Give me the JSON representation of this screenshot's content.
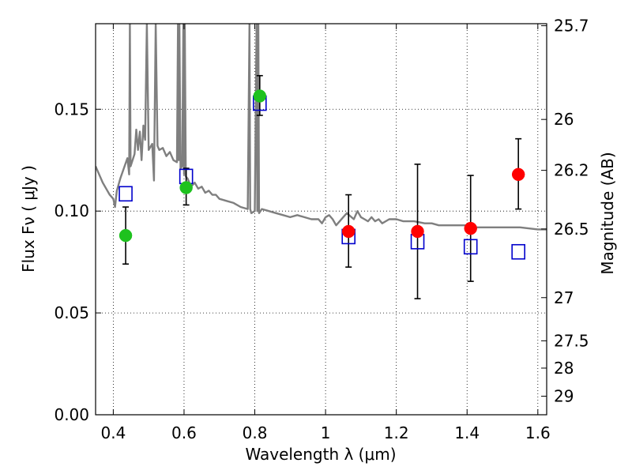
{
  "chart_data": {
    "type": "scatter",
    "xlabel": "Wavelength  λ (μm)",
    "ylabel": "Flux  Fν  ( μJy )",
    "y2label": "Magnitude (AB)",
    "xlim": [
      0.35,
      1.625
    ],
    "ylim": [
      0.0,
      0.192
    ],
    "grid": true,
    "x_ticks": [
      0.4,
      0.6,
      0.8,
      1.0,
      1.2,
      1.4,
      1.6
    ],
    "x_tick_labels": [
      "0.4",
      "0.6",
      "0.8",
      "1",
      "1.2",
      "1.4",
      "1.6"
    ],
    "y_ticks": [
      0.0,
      0.05,
      0.1,
      0.15
    ],
    "y_tick_labels": [
      "0.00",
      "0.05",
      "0.10",
      "0.15"
    ],
    "y2_ticks": [
      {
        "label": "25.7",
        "flux": 0.191
      },
      {
        "label": "26",
        "flux": 0.145
      },
      {
        "label": "26.2",
        "flux": 0.12
      },
      {
        "label": "26.5",
        "flux": 0.0912
      },
      {
        "label": "27",
        "flux": 0.0575
      },
      {
        "label": "27.5",
        "flux": 0.0363
      },
      {
        "label": "28",
        "flux": 0.0229
      },
      {
        "label": "29",
        "flux": 0.0091
      }
    ],
    "colors": {
      "green": "#1ec21e",
      "red": "#ff0000",
      "model_box": "#0000cc",
      "spectrum": "#7f7f7f",
      "errorbar": "#000000"
    },
    "series": [
      {
        "marker": "green-circle",
        "points": [
          {
            "x": 0.435,
            "y": 0.088,
            "yerr_low": 0.074,
            "yerr_high": 0.102
          },
          {
            "x": 0.606,
            "y": 0.1115,
            "yerr_low": 0.103,
            "yerr_high": 0.121
          },
          {
            "x": 0.814,
            "y": 0.1565,
            "yerr_low": 0.147,
            "yerr_high": 0.1665
          }
        ]
      },
      {
        "marker": "red-circle",
        "points": [
          {
            "x": 1.065,
            "y": 0.09,
            "yerr_low": 0.0725,
            "yerr_high": 0.108
          },
          {
            "x": 1.26,
            "y": 0.09,
            "yerr_low": 0.057,
            "yerr_high": 0.123
          },
          {
            "x": 1.41,
            "y": 0.0915,
            "yerr_low": 0.0655,
            "yerr_high": 0.1175
          },
          {
            "x": 1.545,
            "y": 0.118,
            "yerr_low": 0.101,
            "yerr_high": 0.1355
          }
        ]
      },
      {
        "marker": "blue-open-square",
        "points": [
          {
            "x": 0.435,
            "y": 0.1085
          },
          {
            "x": 0.606,
            "y": 0.117
          },
          {
            "x": 0.814,
            "y": 0.153
          },
          {
            "x": 1.065,
            "y": 0.0875
          },
          {
            "x": 1.26,
            "y": 0.085
          },
          {
            "x": 1.41,
            "y": 0.0825
          },
          {
            "x": 1.545,
            "y": 0.08
          }
        ]
      }
    ],
    "spectrum": {
      "x": [
        0.35,
        0.36,
        0.37,
        0.38,
        0.39,
        0.4,
        0.405,
        0.41,
        0.42,
        0.43,
        0.44,
        0.445,
        0.447,
        0.449,
        0.46,
        0.465,
        0.47,
        0.475,
        0.48,
        0.485,
        0.49,
        0.495,
        0.5,
        0.51,
        0.515,
        0.52,
        0.525,
        0.53,
        0.54,
        0.55,
        0.56,
        0.57,
        0.58,
        0.583,
        0.585,
        0.587,
        0.59,
        0.595,
        0.598,
        0.6,
        0.602,
        0.605,
        0.61,
        0.62,
        0.63,
        0.64,
        0.65,
        0.66,
        0.67,
        0.68,
        0.69,
        0.7,
        0.72,
        0.74,
        0.76,
        0.78,
        0.785,
        0.787,
        0.79,
        0.8,
        0.805,
        0.807,
        0.81,
        0.812,
        0.82,
        0.84,
        0.86,
        0.88,
        0.9,
        0.92,
        0.94,
        0.96,
        0.98,
        0.99,
        1.0,
        1.01,
        1.02,
        1.03,
        1.04,
        1.05,
        1.06,
        1.08,
        1.09,
        1.1,
        1.11,
        1.12,
        1.13,
        1.14,
        1.15,
        1.16,
        1.17,
        1.18,
        1.2,
        1.22,
        1.25,
        1.28,
        1.3,
        1.32,
        1.35,
        1.38,
        1.4,
        1.42,
        1.45,
        1.48,
        1.5,
        1.55,
        1.6,
        1.625
      ],
      "y": [
        0.122,
        0.118,
        0.114,
        0.111,
        0.108,
        0.106,
        0.102,
        0.11,
        0.116,
        0.121,
        0.126,
        0.118,
        0.192,
        0.122,
        0.128,
        0.14,
        0.13,
        0.139,
        0.125,
        0.142,
        0.135,
        0.192,
        0.13,
        0.133,
        0.115,
        0.192,
        0.132,
        0.13,
        0.131,
        0.127,
        0.129,
        0.125,
        0.124,
        0.192,
        0.125,
        0.192,
        0.121,
        0.122,
        0.192,
        0.118,
        0.192,
        0.117,
        0.116,
        0.112,
        0.114,
        0.111,
        0.112,
        0.109,
        0.11,
        0.108,
        0.108,
        0.106,
        0.105,
        0.104,
        0.102,
        0.101,
        0.192,
        0.101,
        0.099,
        0.1,
        0.192,
        0.1,
        0.192,
        0.099,
        0.101,
        0.1,
        0.099,
        0.098,
        0.097,
        0.098,
        0.097,
        0.096,
        0.096,
        0.094,
        0.097,
        0.098,
        0.096,
        0.093,
        0.095,
        0.097,
        0.099,
        0.096,
        0.1,
        0.097,
        0.096,
        0.095,
        0.097,
        0.095,
        0.096,
        0.094,
        0.095,
        0.096,
        0.096,
        0.095,
        0.095,
        0.094,
        0.094,
        0.093,
        0.093,
        0.093,
        0.093,
        0.092,
        0.092,
        0.092,
        0.092,
        0.092,
        0.091,
        0.091
      ]
    }
  }
}
